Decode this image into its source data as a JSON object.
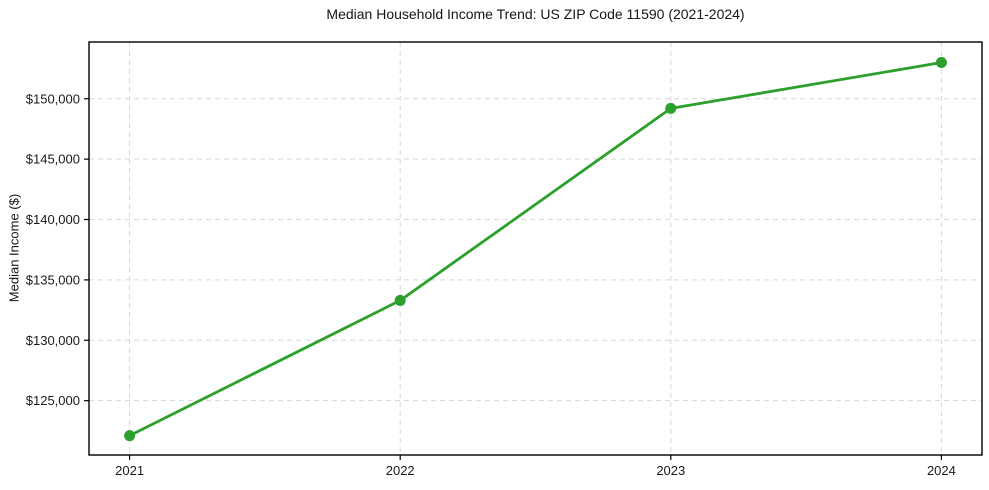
{
  "chart_data": {
    "type": "line",
    "title": "Median Household Income Trend: US ZIP Code 11590 (2021-2024)",
    "ylabel": "Median Income ($)",
    "xlabel": "",
    "categories": [
      "2021",
      "2022",
      "2023",
      "2024"
    ],
    "series": [
      {
        "name": "Median Household Income",
        "values": [
          122100,
          133300,
          149200,
          153000
        ]
      }
    ],
    "yticks": [
      125000,
      130000,
      135000,
      140000,
      145000,
      150000
    ],
    "ytick_labels": [
      "$125,000",
      "$130,000",
      "$135,000",
      "$140,000",
      "$145,000",
      "$150,000"
    ],
    "ylim": [
      120500,
      154700
    ],
    "grid": "dashed",
    "legend": "none",
    "colors": {
      "line": "#2ca02c",
      "marker": "#2ca02c",
      "gridline": "#d6d6d6",
      "axis_border": "#000000",
      "background": "#ffffff"
    }
  }
}
